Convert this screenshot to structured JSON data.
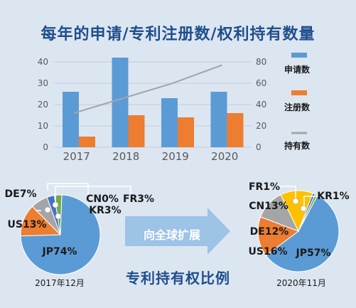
{
  "title": "每年的申请/专利注册数/权利持有数量",
  "subtitle": "专利持有权比例",
  "arrow_label": "向全球扩展",
  "colors": {
    "title": "#1f4e8c",
    "bar_blue": "#5b9bd5",
    "bar_orange": "#ed7d31",
    "line_gray": "#a5a5a5",
    "pie_jp": "#5b9bd5",
    "pie_us": "#ed7d31",
    "pie_de": "#a5a5a5",
    "pie_cn": "#ffc000",
    "pie_kr": "#4472c4",
    "pie_fr": "#70ad47",
    "arrow": "#9dc3e6"
  },
  "chart_data": [
    {
      "type": "bar",
      "categories": [
        "2017",
        "2018",
        "2019",
        "2020"
      ],
      "series": [
        {
          "name": "申请数",
          "values": [
            26,
            42,
            23,
            26
          ],
          "axis": "left",
          "kind": "bar"
        },
        {
          "name": "注册数",
          "values": [
            5,
            15,
            14,
            16
          ],
          "axis": "left",
          "kind": "bar"
        },
        {
          "name": "持有数",
          "values": [
            32,
            46,
            60,
            77
          ],
          "axis": "right",
          "kind": "line"
        }
      ],
      "ylim": [
        0,
        45
      ],
      "y_ticks": [
        "0",
        "10",
        "20",
        "30",
        "40"
      ],
      "y2lim": [
        0,
        90
      ],
      "y2_ticks": [
        "0",
        "20",
        "40",
        "60",
        "80"
      ],
      "grid": true,
      "legend_position": "right"
    },
    {
      "type": "pie",
      "caption": "2017年12月",
      "slices": [
        {
          "name": "JP",
          "value": 74,
          "label": "JP74%"
        },
        {
          "name": "US",
          "value": 13,
          "label": "US13%"
        },
        {
          "name": "DE",
          "value": 7,
          "label": "DE7%"
        },
        {
          "name": "CN",
          "value": 0,
          "label": "CN0%"
        },
        {
          "name": "KR",
          "value": 3,
          "label": "KR3%"
        },
        {
          "name": "FR",
          "value": 3,
          "label": "FR3%"
        }
      ]
    },
    {
      "type": "pie",
      "caption": "2020年11月",
      "slices": [
        {
          "name": "JP",
          "value": 57,
          "label": "JP57%"
        },
        {
          "name": "US",
          "value": 16,
          "label": "US16%"
        },
        {
          "name": "DE",
          "value": 12,
          "label": "DE12%"
        },
        {
          "name": "CN",
          "value": 13,
          "label": "CN13%"
        },
        {
          "name": "KR",
          "value": 1,
          "label": "KR1%"
        },
        {
          "name": "FR",
          "value": 1,
          "label": "FR1%"
        }
      ]
    }
  ]
}
